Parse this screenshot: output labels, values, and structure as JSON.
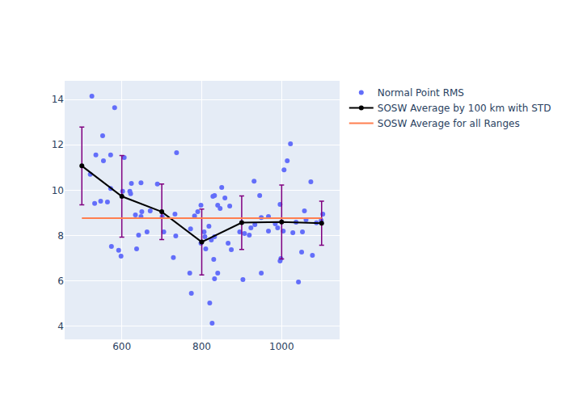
{
  "chart_data": {
    "type": "scatter",
    "xlim": [
      457,
      1145
    ],
    "ylim": [
      3.43,
      14.82
    ],
    "xticks": [
      600,
      800,
      1000
    ],
    "yticks": [
      4,
      6,
      8,
      10,
      12,
      14
    ],
    "grid": true,
    "legend": "right",
    "series": [
      {
        "name": "Normal Point RMS",
        "type": "scatter",
        "marker": "circle",
        "color": "#636efa",
        "x": [
          525,
          582,
          552,
          535,
          572,
          606,
          554,
          521,
          624,
          648,
          689,
          572,
          602,
          620,
          622,
          547,
          564,
          532,
          671,
          650,
          733,
          634,
          648,
          701,
          663,
          705,
          642,
          735,
          574,
          637,
          592,
          598,
          729,
          737,
          770,
          774,
          772,
          782,
          790,
          798,
          806,
          808,
          798,
          810,
          818,
          824,
          828,
          832,
          830,
          832,
          832,
          840,
          820,
          826,
          840,
          846,
          850,
          858,
          870,
          866,
          874,
          895,
          907,
          919,
          903,
          923,
          933,
          931,
          945,
          949,
          949,
          967,
          967,
          984,
          990,
          996,
          996,
          998,
          1004,
          1006,
          1014,
          1022,
          1028,
          1036,
          1042,
          1050,
          1052,
          1057,
          1061,
          1073,
          1077,
          1087,
          1103,
          1099
        ],
        "values": [
          14.14,
          13.64,
          12.4,
          11.55,
          11.55,
          11.44,
          11.3,
          10.7,
          10.3,
          10.33,
          10.27,
          10.08,
          9.95,
          9.95,
          9.85,
          9.52,
          9.48,
          9.42,
          9.09,
          9.05,
          8.95,
          8.91,
          8.84,
          8.84,
          8.16,
          8.16,
          8.02,
          7.99,
          7.52,
          7.42,
          7.35,
          7.1,
          7.03,
          11.65,
          6.35,
          5.46,
          8.3,
          8.87,
          9.05,
          9.34,
          8.16,
          7.95,
          7.67,
          7.42,
          8.41,
          7.81,
          9.73,
          9.77,
          6.95,
          7.95,
          6.1,
          6.35,
          5.03,
          4.14,
          9.34,
          9.2,
          10.12,
          9.66,
          9.3,
          7.67,
          7.38,
          8.16,
          8.09,
          8.02,
          6.06,
          8.34,
          8.48,
          10.4,
          9.77,
          6.35,
          8.8,
          8.84,
          8.2,
          8.52,
          8.34,
          9.37,
          6.88,
          6.99,
          8.2,
          10.9,
          11.3,
          12.04,
          8.13,
          8.59,
          5.96,
          7.27,
          8.16,
          9.09,
          8.7,
          10.37,
          7.13,
          8.56,
          8.95,
          8.66
        ]
      },
      {
        "name": "SOSW Average by 100 km with STD",
        "type": "line",
        "marker": "circle",
        "color": "#000000",
        "error_color": "#800080",
        "x": [
          500,
          600,
          700,
          800,
          900,
          1000,
          1100
        ],
        "values": [
          11.07,
          9.73,
          9.05,
          7.72,
          8.57,
          8.6,
          8.55
        ],
        "std": [
          1.71,
          1.8,
          1.22,
          1.45,
          1.18,
          1.63,
          0.97
        ]
      },
      {
        "name": "SOSW Average for all Ranges",
        "type": "line",
        "color": "#ff7f50",
        "x": [
          500,
          1100
        ],
        "values": [
          8.77,
          8.77
        ]
      }
    ]
  }
}
